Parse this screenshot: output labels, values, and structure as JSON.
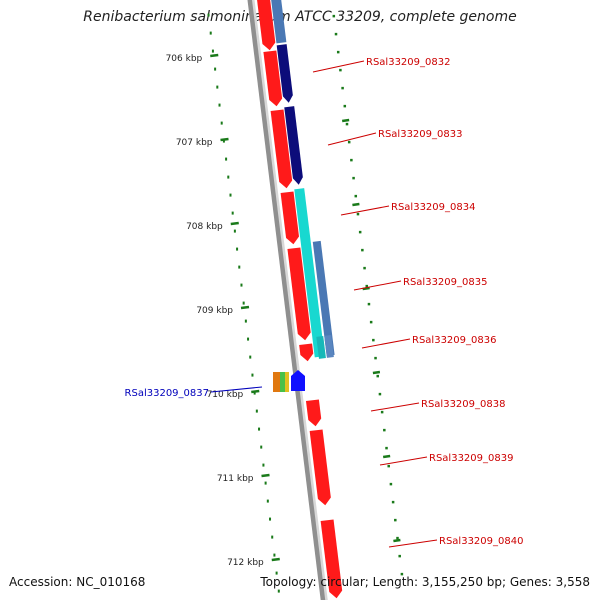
{
  "title": "Renibacterium salmoninarum ATCC 33209, complete genome",
  "footer": {
    "accession": "Accession: NC_010168",
    "summary": "Topology: circular; Length: 3,155,250 bp; Genes: 3,558"
  },
  "colors": {
    "backbone": "#8f8f8f",
    "ruler_tick": "#1a7a1a",
    "forward_cds": "#ff1a1a",
    "reverse_label": "#cc0000",
    "forward_label": "#0000bb",
    "navy": "#0c0c7a",
    "steel_blue": "#4a78b4",
    "cyan": "#18d8d0"
  },
  "ruler": {
    "unit": "kbp",
    "labels": [
      "706 kbp",
      "707 kbp",
      "708 kbp",
      "709 kbp",
      "710 kbp",
      "711 kbp",
      "712 kbp"
    ]
  },
  "gene_labels": [
    {
      "text": "RSal33209_0832",
      "strand": "reverse"
    },
    {
      "text": "RSal33209_0833",
      "strand": "reverse"
    },
    {
      "text": "RSal33209_0834",
      "strand": "reverse"
    },
    {
      "text": "RSal33209_0835",
      "strand": "reverse"
    },
    {
      "text": "RSal33209_0836",
      "strand": "reverse"
    },
    {
      "text": "RSal33209_0837",
      "strand": "forward"
    },
    {
      "text": "RSal33209_0838",
      "strand": "reverse"
    },
    {
      "text": "RSal33209_0839",
      "strand": "reverse"
    },
    {
      "text": "RSal33209_0840",
      "strand": "reverse"
    }
  ]
}
